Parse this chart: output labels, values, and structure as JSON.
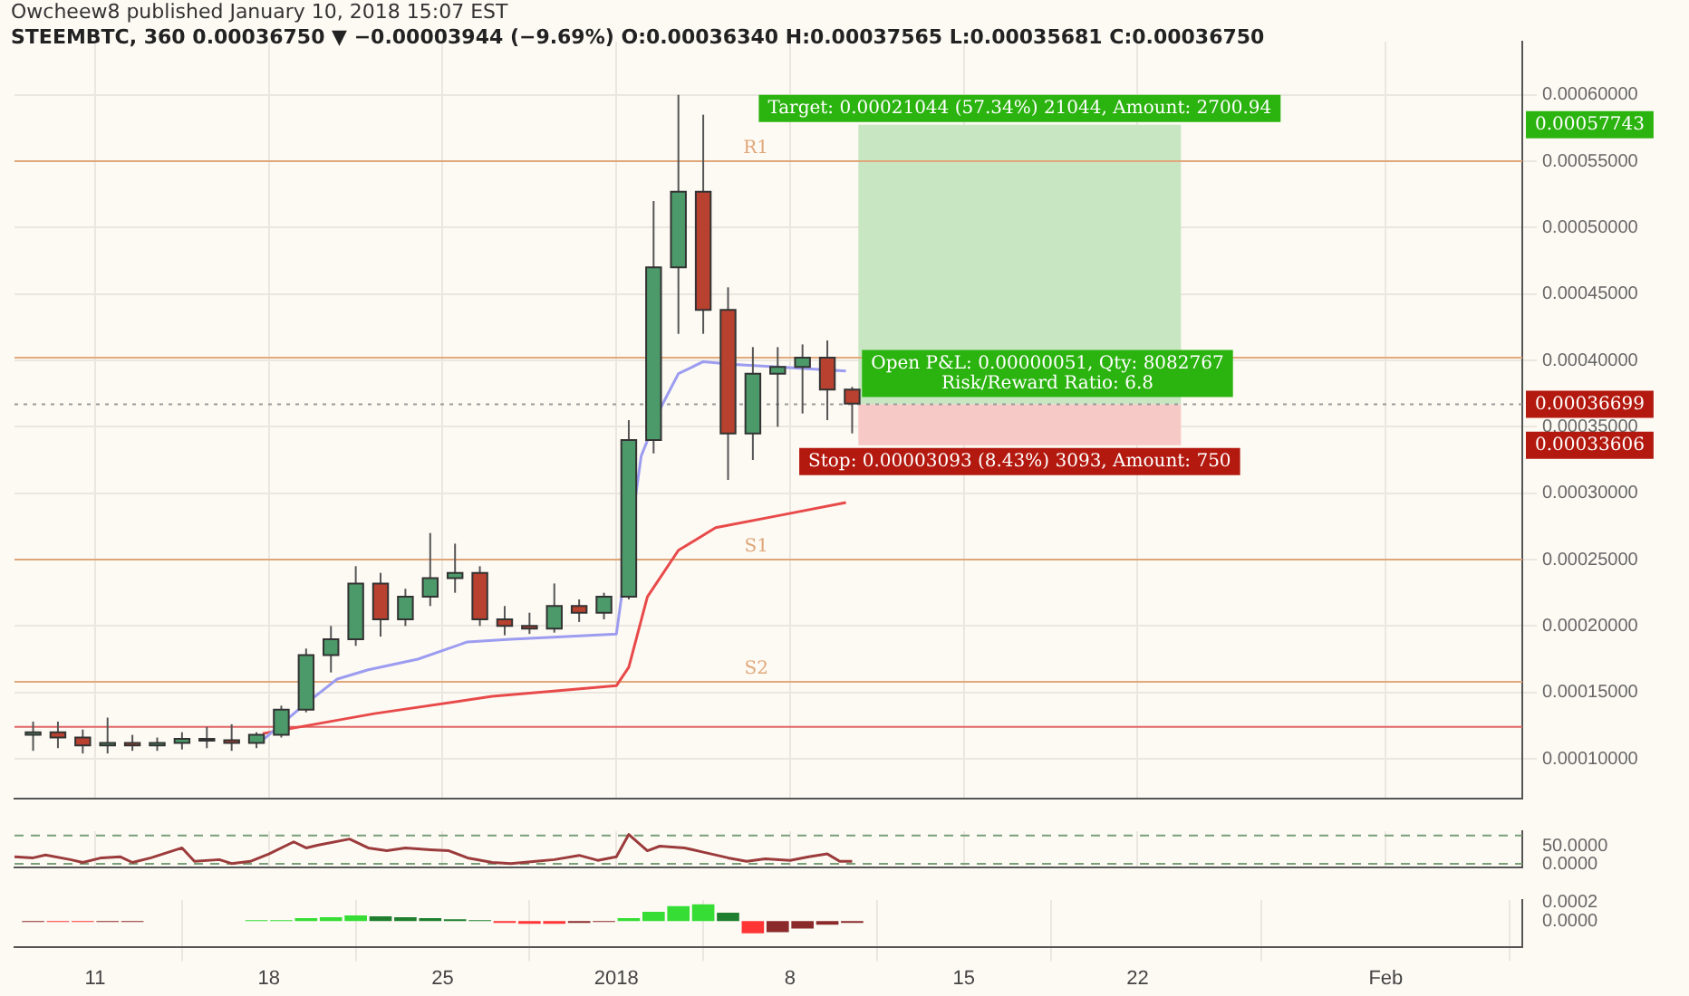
{
  "chart_data": [
    {
      "type": "candlestick",
      "title": "Owcheew8 published January 10, 2018 15:07 EST",
      "subtitle": "STEEMBTC, 360  0.00036750 ▼ −0.00003944 (−9.69%)  O:0.00036340  H:0.00037565  L:0.00035681  C:0.00036750",
      "xlim": [
        "2017-12-07T18:00",
        "2018-02-06T12:00"
      ],
      "xticks": [
        {
          "value": "2017-12-11",
          "label": null
        },
        {
          "value": "2017-12-18",
          "label": null
        },
        {
          "value": "2017-12-25",
          "label": null
        },
        {
          "value": "2018-01-01",
          "label": null
        },
        {
          "value": "2018-01-08",
          "label": null
        },
        {
          "value": "2018-01-15",
          "label": null
        },
        {
          "value": "2018-01-22",
          "label": null
        },
        {
          "value": "2018-02-01",
          "label": null
        }
      ],
      "ylim": [
        7e-05,
        0.00064
      ],
      "yticks": [
        {
          "value": 0.0001,
          "label": "0.00010000"
        },
        {
          "value": 0.00015,
          "label": "0.00015000"
        },
        {
          "value": 0.0002,
          "label": "0.00020000"
        },
        {
          "value": 0.00025,
          "label": "0.00025000"
        },
        {
          "value": 0.0003,
          "label": "0.00030000"
        },
        {
          "value": 0.00035,
          "label": "0.00035000"
        },
        {
          "value": 0.0004,
          "label": "0.00040000"
        },
        {
          "value": 0.00045,
          "label": "0.00045000"
        },
        {
          "value": 0.0005,
          "label": "0.00050000"
        },
        {
          "value": 0.00055,
          "label": "0.00055000"
        },
        {
          "value": 0.0006,
          "label": "0.00060000"
        }
      ],
      "tick_labels": "y",
      "grid": true,
      "legend": false,
      "series": [
        {
          "type": "candlestick",
          "x": [
            "2017-12-08T12:00",
            "2017-12-09T12:00",
            "2017-12-10T12:00",
            "2017-12-11T12:00",
            "2017-12-12T12:00",
            "2017-12-13T12:00",
            "2017-12-14T12:00",
            "2017-12-15T12:00",
            "2017-12-16T12:00",
            "2017-12-17T12:00",
            "2017-12-18T12:00",
            "2017-12-19T12:00",
            "2017-12-20T12:00",
            "2017-12-21T12:00",
            "2017-12-22T12:00",
            "2017-12-23T12:00",
            "2017-12-24T12:00",
            "2017-12-25T12:00",
            "2017-12-26T12:00",
            "2017-12-27T12:00",
            "2017-12-28T12:00",
            "2017-12-29T12:00",
            "2017-12-30T12:00",
            "2017-12-31T12:00",
            "2018-01-01T12:00",
            "2018-01-02T12:00",
            "2018-01-03T12:00",
            "2018-01-04T12:00",
            "2018-01-05T12:00",
            "2018-01-06T12:00",
            "2018-01-07T12:00",
            "2018-01-08T12:00",
            "2018-01-09T12:00",
            "2018-01-10T12:00"
          ],
          "ohlc": [
            [
              0.000118,
              0.000128,
              0.000106,
              0.00012
            ],
            [
              0.00012,
              0.000128,
              0.000108,
              0.000116
            ],
            [
              0.000116,
              0.000122,
              0.000104,
              0.00011
            ],
            [
              0.00011,
              0.000131,
              0.000104,
              0.000112
            ],
            [
              0.000112,
              0.000118,
              0.000106,
              0.00011
            ],
            [
              0.00011,
              0.000116,
              0.000106,
              0.000112
            ],
            [
              0.000112,
              0.00012,
              0.000107,
              0.000115
            ],
            [
              0.000115,
              0.000124,
              0.000108,
              0.000114
            ],
            [
              0.000114,
              0.000126,
              0.000106,
              0.000112
            ],
            [
              0.000112,
              0.00012,
              0.000108,
              0.000118
            ],
            [
              0.000118,
              0.00014,
              0.000116,
              0.000137
            ],
            [
              0.000137,
              0.000183,
              0.000135,
              0.000178
            ],
            [
              0.000178,
              0.0002,
              0.000165,
              0.00019
            ],
            [
              0.00019,
              0.000245,
              0.000185,
              0.000232
            ],
            [
              0.000232,
              0.00024,
              0.000192,
              0.000205
            ],
            [
              0.000205,
              0.000228,
              0.0002,
              0.000222
            ],
            [
              0.000222,
              0.00027,
              0.000215,
              0.000236
            ],
            [
              0.000236,
              0.000262,
              0.000225,
              0.00024
            ],
            [
              0.00024,
              0.000245,
              0.0002,
              0.000205
            ],
            [
              0.000205,
              0.000215,
              0.000193,
              0.0002
            ],
            [
              0.0002,
              0.00021,
              0.000194,
              0.000198
            ],
            [
              0.000198,
              0.000232,
              0.000195,
              0.000215
            ],
            [
              0.000215,
              0.00022,
              0.000203,
              0.00021
            ],
            [
              0.00021,
              0.000225,
              0.000205,
              0.000222
            ],
            [
              0.000222,
              0.000355,
              0.00022,
              0.00034
            ],
            [
              0.00034,
              0.00052,
              0.00033,
              0.00047
            ],
            [
              0.00047,
              0.0006,
              0.00042,
              0.000527
            ],
            [
              0.000527,
              0.000585,
              0.00042,
              0.000438
            ],
            [
              0.000438,
              0.000455,
              0.00031,
              0.000345
            ],
            [
              0.000345,
              0.00041,
              0.000325,
              0.00039
            ],
            [
              0.00039,
              0.00041,
              0.00035,
              0.000395
            ],
            [
              0.000395,
              0.000412,
              0.00036,
              0.000402
            ],
            [
              0.000402,
              0.000415,
              0.000355,
              0.000378
            ],
            [
              0.000378,
              0.00038,
              0.000345,
              0.0003675
            ]
          ],
          "colors": [
            "#4c9a6a",
            "#b8412f",
            "#b8412f",
            "#4c9a6a",
            "#b8412f",
            "#4c9a6a",
            "#4c9a6a",
            "#b8412f",
            "#b8412f",
            "#4c9a6a",
            "#4c9a6a",
            "#4c9a6a",
            "#4c9a6a",
            "#4c9a6a",
            "#b8412f",
            "#4c9a6a",
            "#4c9a6a",
            "#4c9a6a",
            "#b8412f",
            "#b8412f",
            "#b8412f",
            "#4c9a6a",
            "#b8412f",
            "#4c9a6a",
            "#4c9a6a",
            "#4c9a6a",
            "#4c9a6a",
            "#b8412f",
            "#b8412f",
            "#4c9a6a",
            "#4c9a6a",
            "#4c9a6a",
            "#b8412f",
            "#b8412f"
          ]
        },
        {
          "type": "line",
          "color": "#9c9cf0",
          "x": [
            "2017-12-17T18:00",
            "2017-12-19T06:00",
            "2017-12-20T18:00",
            "2017-12-22T00:00",
            "2017-12-24T00:00",
            "2017-12-26T00:00",
            "2017-12-27T18:00",
            "2017-12-30T00:00",
            "2018-01-01T00:00",
            "2018-01-01T12:00",
            "2018-01-02T00:00",
            "2018-01-02T18:00",
            "2018-01-03T12:00",
            "2018-01-04T12:00",
            "2018-01-05T18:00",
            "2018-01-07T12:00",
            "2018-01-10T06:00"
          ],
          "values": [
            0.000114,
            0.000138,
            0.00016,
            0.000167,
            0.000175,
            0.000188,
            0.00019,
            0.000192,
            0.000194,
            null,
            0.000328,
            0.000363,
            0.00039,
            0.000399,
            0.000397,
            0.000395,
            0.000392
          ]
        },
        {
          "type": "line",
          "color": "#e84a4a",
          "x": [
            "2017-12-17T18:00",
            "2017-12-22T06:00",
            "2017-12-27T00:00",
            "2018-01-01T00:00",
            "2018-01-01T12:00",
            "2018-01-02T06:00",
            "2018-01-03T12:00",
            "2018-01-05T00:00",
            "2018-01-07T12:00",
            "2018-01-10T06:00"
          ],
          "values": [
            0.000119,
            0.000134,
            0.000147,
            0.000155,
            0.000169,
            0.000222,
            0.000257,
            0.000274,
            0.000283,
            0.000293
          ]
        },
        {
          "type": "bar",
          "color": "#c9e6c3",
          "x": [
            "2018-01-17T06:00"
          ],
          "base": [
            0.00036699
          ],
          "values": [
            0.00021044
          ],
          "value_labels": [
            "Target: 0.00021044 (57.34%) 21044, Amount: 2700.94"
          ]
        },
        {
          "type": "bar",
          "color": "#f6c9c6",
          "x": [
            "2018-01-17T06:00"
          ],
          "base": [
            0.00033606
          ],
          "values": [
            3.093e-05
          ],
          "value_labels": [
            "Stop: 0.00003093 (8.43%) 3093, Amount: 750"
          ]
        }
      ],
      "ref_lines": [
        {
          "axis": "y",
          "value": 0.00055,
          "label": "R1",
          "color": "#e0a77a"
        },
        {
          "axis": "y",
          "value": 0.000402,
          "color": "#e2a97c"
        },
        {
          "axis": "y",
          "value": 0.00025,
          "label": "S1",
          "color": "#dea578"
        },
        {
          "axis": "y",
          "value": 0.000158,
          "label": "S2",
          "color": "#e1a87b"
        },
        {
          "axis": "y",
          "value": 0.000124,
          "color": "#e06666"
        },
        {
          "axis": "y",
          "value": 0.00036699,
          "color": "#9a9a9a",
          "line_style": "dotted"
        }
      ],
      "annotations": [
        {
          "text": "Open P&L: 0.00000051, Qty: 8082767\nRisk/Reward Ratio: 6.8",
          "x": "2018-01-17T06:00",
          "y": 0.00036699
        },
        "0.00057743",
        "0.00036699",
        "0.00033606"
      ]
    },
    {
      "type": "line",
      "xlim": [
        "2017-12-07T18:00",
        "2018-02-06T12:00"
      ],
      "xticks": [
        {
          "value": "2017-12-11",
          "label": null
        },
        {
          "value": "2017-12-18",
          "label": null
        },
        {
          "value": "2017-12-25",
          "label": null
        },
        {
          "value": "2018-01-01",
          "label": null
        },
        {
          "value": "2018-01-08",
          "label": null
        },
        {
          "value": "2018-01-15",
          "label": null
        },
        {
          "value": "2018-01-22",
          "label": null
        },
        {
          "value": "2018-02-01",
          "label": null
        }
      ],
      "ylim": [
        -10,
        92
      ],
      "yticks": [
        {
          "value": 0,
          "label": "0.0000"
        },
        {
          "value": 50,
          "label": "50.0000"
        }
      ],
      "tick_labels": "y",
      "grid": "x",
      "legend": false,
      "series": [
        {
          "color": "#9b3b3b",
          "x": [
            "2017-12-07T18:00",
            "2017-12-08T12:00",
            "2017-12-09T00:00",
            "2017-12-10T00:00",
            "2017-12-10T12:00",
            "2017-12-11T06:00",
            "2017-12-12T00:00",
            "2017-12-12T12:00",
            "2017-12-13T06:00",
            "2017-12-14T12:00",
            "2017-12-15T00:00",
            "2017-12-16T00:00",
            "2017-12-16T12:00",
            "2017-12-17T06:00",
            "2017-12-18T00:00",
            "2017-12-19T00:00",
            "2017-12-19T12:00",
            "2017-12-20T00:00",
            "2017-12-21T06:00",
            "2017-12-22T00:00",
            "2017-12-22T18:00",
            "2017-12-23T12:00",
            "2017-12-24T12:00",
            "2017-12-25T06:00",
            "2017-12-26T00:00",
            "2017-12-27T00:00",
            "2017-12-27T18:00",
            "2017-12-28T18:00",
            "2017-12-29T12:00",
            "2017-12-30T12:00",
            "2017-12-31T06:00",
            "2018-01-01T00:00",
            "2018-01-01T12:00",
            "2018-01-02T06:00",
            "2018-01-02T18:00",
            "2018-01-03T18:00",
            "2018-01-04T12:00",
            "2018-01-05T12:00",
            "2018-01-06T06:00",
            "2018-01-07T00:00",
            "2018-01-08T00:00",
            "2018-01-08T18:00",
            "2018-01-09T12:00",
            "2018-01-10T00:00",
            "2018-01-10T12:00"
          ],
          "values": [
            20,
            17,
            25,
            12,
            4,
            17,
            20,
            4,
            17,
            45,
            7,
            12,
            1,
            7,
            28,
            62,
            45,
            53,
            70,
            45,
            37,
            45,
            40,
            37,
            17,
            4,
            1,
            7,
            12,
            24,
            10,
            20,
            83,
            37,
            50,
            45,
            33,
            17,
            7,
            14,
            10,
            20,
            28,
            7,
            7
          ]
        }
      ],
      "ref_lines": [
        {
          "axis": "y",
          "value": 80,
          "color": "#7aa07a",
          "line_style": "dashed"
        },
        {
          "axis": "y",
          "value": 0,
          "color": "#7aa07a",
          "line_style": "dashed"
        }
      ]
    },
    {
      "type": "bar",
      "xlim": [
        "2017-12-07T18:00",
        "2018-02-06T12:00"
      ],
      "xticks": [
        {
          "value": "2017-12-11",
          "label": "11"
        },
        {
          "value": "2017-12-18",
          "label": "18"
        },
        {
          "value": "2017-12-25",
          "label": "25"
        },
        {
          "value": "2018-01-01",
          "label": "2018"
        },
        {
          "value": "2018-01-08",
          "label": "8"
        },
        {
          "value": "2018-01-15",
          "label": "15"
        },
        {
          "value": "2018-01-22",
          "label": "22"
        },
        {
          "value": "2018-02-01",
          "label": "Feb"
        }
      ],
      "ylim": [
        -0.000275,
        0.000225
      ],
      "yticks": [
        {
          "value": 0,
          "label": "0.0000"
        },
        {
          "value": 0.0002,
          "label": "0.0002"
        }
      ],
      "grid": "x",
      "legend": false,
      "x": [
        "2017-12-08T12:00",
        "2017-12-09T12:00",
        "2017-12-10T12:00",
        "2017-12-11T12:00",
        "2017-12-12T12:00",
        "2017-12-13T12:00",
        "2017-12-14T12:00",
        "2017-12-15T12:00",
        "2017-12-16T12:00",
        "2017-12-17T12:00",
        "2017-12-18T12:00",
        "2017-12-19T12:00",
        "2017-12-20T12:00",
        "2017-12-21T12:00",
        "2017-12-22T12:00",
        "2017-12-23T12:00",
        "2017-12-24T12:00",
        "2017-12-25T12:00",
        "2017-12-26T12:00",
        "2017-12-27T12:00",
        "2017-12-28T12:00",
        "2017-12-29T12:00",
        "2017-12-30T12:00",
        "2017-12-31T12:00",
        "2018-01-01T12:00",
        "2018-01-02T12:00",
        "2018-01-03T12:00",
        "2018-01-04T12:00",
        "2018-01-05T12:00",
        "2018-01-06T12:00",
        "2018-01-07T12:00",
        "2018-01-08T12:00",
        "2018-01-09T12:00",
        "2018-01-10T12:00"
      ],
      "values": [
        -1e-05,
        -1e-05,
        -1e-05,
        -1e-05,
        -1e-05,
        0,
        0,
        0,
        0,
        1e-05,
        1e-05,
        3e-05,
        4e-05,
        6e-05,
        5e-05,
        4e-05,
        3e-05,
        2e-05,
        1e-05,
        -2e-05,
        -3e-05,
        -3e-05,
        -2e-05,
        -1e-05,
        3e-05,
        0.0001,
        0.00016,
        0.00018,
        9e-05,
        -0.00013,
        -0.00012,
        -8e-05,
        -4e-05,
        -2e-05
      ],
      "colors": [
        "#8a2a2a",
        "#ff3535",
        "#ff3535",
        "#8a2a2a",
        "#8a2a2a",
        "#8a2a2a",
        "#35dd35",
        "#35dd35",
        "#1f7f2f",
        "#35dd35",
        "#35dd35",
        "#35dd35",
        "#35dd35",
        "#35dd35",
        "#1f7f2f",
        "#1f7f2f",
        "#1f7f2f",
        "#1f7f2f",
        "#1f7f2f",
        "#ff3535",
        "#ff3535",
        "#ff3535",
        "#8a2a2a",
        "#8a2a2a",
        "#35dd35",
        "#35dd35",
        "#35dd35",
        "#35dd35",
        "#1f7f2f",
        "#ff3535",
        "#8a2a2a",
        "#8a2a2a",
        "#8a2a2a",
        "#8a2a2a"
      ]
    }
  ]
}
